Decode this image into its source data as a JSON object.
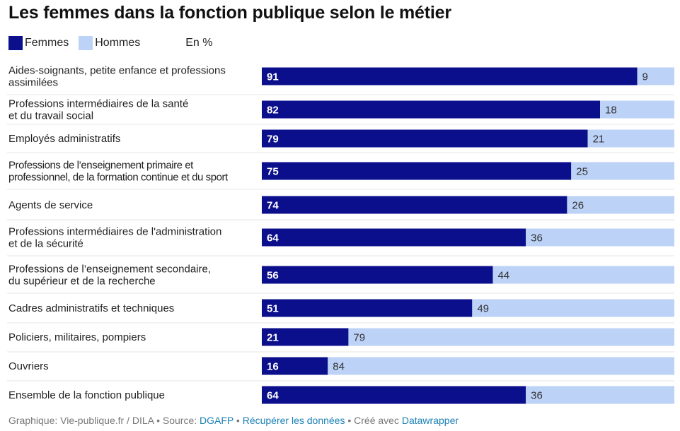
{
  "title": "Les femmes dans la fonction publique selon le métier",
  "legend": {
    "items": [
      {
        "label": "Femmes",
        "color": "#0b0f8c"
      },
      {
        "label": "Hommes",
        "color": "#bcd2f7"
      }
    ],
    "unit": "En %"
  },
  "chart_data": {
    "type": "bar",
    "orientation": "horizontal",
    "stacked": true,
    "unit": "En %",
    "xlim": [
      0,
      100
    ],
    "categories": [
      [
        "Aides-soignants, petite enfance et professions",
        "assimilées"
      ],
      [
        "Professions intermédiaires de la santé",
        "et du travail social"
      ],
      [
        "Employés administratifs"
      ],
      [
        "Professions de l’enseignement primaire et",
        "professionnel, de la formation continue et du sport"
      ],
      [
        "Agents de service"
      ],
      [
        "Professions intermédiaires de l'administration",
        "et de la sécurité"
      ],
      [
        "Professions de l’enseignement secondaire,",
        "du supérieur et de la recherche"
      ],
      [
        "Cadres administratifs et techniques"
      ],
      [
        "Policiers, militaires, pompiers"
      ],
      [
        "Ouvriers"
      ],
      [
        "Ensemble de la fonction publique"
      ]
    ],
    "series": [
      {
        "name": "Femmes",
        "color": "#0b0f8c",
        "label_color": "#ffffff",
        "values": [
          91,
          82,
          79,
          75,
          74,
          64,
          56,
          51,
          21,
          16,
          64
        ]
      },
      {
        "name": "Hommes",
        "color": "#bcd2f7",
        "label_color": "#333333",
        "values": [
          9,
          18,
          21,
          25,
          26,
          36,
          44,
          49,
          79,
          84,
          36
        ]
      }
    ]
  },
  "footer": {
    "prefix": "Graphique: Vie-publique.fr / DILA • Source: ",
    "source_link": "DGAFP",
    "separator1": " • ",
    "download_link": "Récupérer les données",
    "separator2": " • Créé avec ",
    "tool_link": "Datawrapper"
  }
}
